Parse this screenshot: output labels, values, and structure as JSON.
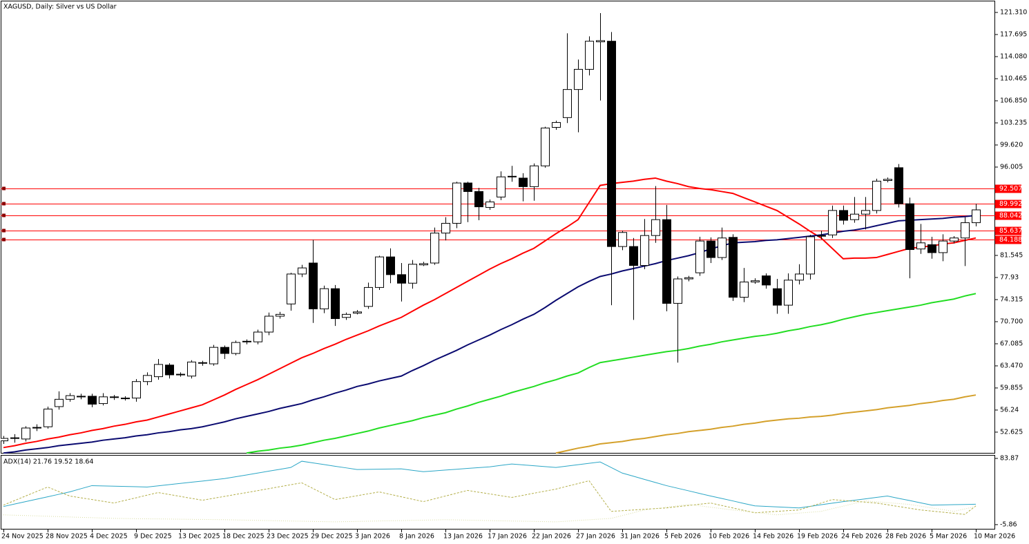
{
  "chart_data": [
    {
      "type": "candlestick",
      "title": "XAGUSD, Daily:  Silver vs US Dollar",
      "categories": [
        "24 Nov 2025",
        null,
        null,
        null,
        "28 Nov 2025",
        null,
        null,
        null,
        "4 Dec 2025",
        null,
        null,
        null,
        "9 Dec 2025",
        null,
        null,
        null,
        "13 Dec 2025",
        null,
        null,
        null,
        "18 Dec 2025",
        null,
        null,
        null,
        "23 Dec 2025",
        null,
        null,
        null,
        "29 Dec 2025",
        null,
        null,
        null,
        "3 Jan 2026",
        null,
        null,
        null,
        "8 Jan 2026",
        null,
        null,
        null,
        "13 Jan 2026",
        null,
        null,
        null,
        "17 Jan 2026",
        null,
        null,
        null,
        "22 Jan 2026",
        null,
        null,
        null,
        "27 Jan 2026",
        null,
        null,
        null,
        "31 Jan 2026",
        null,
        null,
        null,
        "5 Feb 2026",
        null,
        null,
        null,
        "10 Feb 2026",
        null,
        null,
        null,
        "14 Feb 2026",
        null,
        null,
        null,
        "19 Feb 2026",
        null,
        null,
        null,
        "24 Feb 2026",
        null,
        null,
        null,
        "28 Feb 2026",
        null,
        null,
        null,
        "5 Mar 2026",
        null,
        null,
        null,
        "10 Mar 2026"
      ],
      "open": [
        51.2,
        51.6,
        51.5,
        53.3,
        53.5,
        56.8,
        58.0,
        58.4,
        58.5,
        57.3,
        58.4,
        58.2,
        58.2,
        60.9,
        61.7,
        63.6,
        62.0,
        61.8,
        64.0,
        63.8,
        66.5,
        65.5,
        67.4,
        67.4,
        69.0,
        71.6,
        73.6,
        78.5,
        80.3,
        72.8,
        76.1,
        71.4,
        72.1,
        73.2,
        76.3,
        81.3,
        78.4,
        77.0,
        80.0,
        80.3,
        85.2,
        86.8,
        93.4,
        92.0,
        89.4,
        91.1,
        94.4,
        94.2,
        92.8,
        96.2,
        102.5,
        104.1,
        108.7,
        112.0,
        116.5,
        116.6,
        83.0,
        83.0,
        79.9,
        84.8,
        87.4,
        73.7,
        77.7,
        78.7,
        83.9,
        81.2,
        84.5,
        74.7,
        77.2,
        78.2,
        76.1,
        73.4,
        77.5,
        78.5,
        84.7,
        84.9,
        88.9,
        87.4,
        88.3,
        88.9,
        93.8,
        95.9,
        90.0,
        82.6,
        83.3,
        82.0,
        83.9,
        84.4,
        86.9
      ],
      "high": [
        52.0,
        52.3,
        53.6,
        53.9,
        56.8,
        59.3,
        59.0,
        58.9,
        58.9,
        59.0,
        58.7,
        58.5,
        61.3,
        62.4,
        64.6,
        63.9,
        62.4,
        64.4,
        64.3,
        66.9,
        66.8,
        67.6,
        67.8,
        69.4,
        72.2,
        72.3,
        78.7,
        80.0,
        84.1,
        76.6,
        76.7,
        72.2,
        72.6,
        77.1,
        81.5,
        82.7,
        80.3,
        80.8,
        80.5,
        86.1,
        87.8,
        93.6,
        93.6,
        92.6,
        90.7,
        95.3,
        96.2,
        95.0,
        96.6,
        102.6,
        103.6,
        117.9,
        113.6,
        117.4,
        121.2,
        118.1,
        85.6,
        84.4,
        87.5,
        92.9,
        89.8,
        78.1,
        78.2,
        84.6,
        84.5,
        86.1,
        85.0,
        79.5,
        77.8,
        78.6,
        77.7,
        78.6,
        80.1,
        84.9,
        85.6,
        89.7,
        89.7,
        91.1,
        91.1,
        94.1,
        94.3,
        96.5,
        91.0,
        86.7,
        84.6,
        85.0,
        84.7,
        87.8,
        90.0
      ],
      "low": [
        50.7,
        50.9,
        51.1,
        52.8,
        53.2,
        56.3,
        57.6,
        58.0,
        56.7,
        57.0,
        57.9,
        57.8,
        57.6,
        60.3,
        61.2,
        61.4,
        61.7,
        61.4,
        63.5,
        63.5,
        64.6,
        65.2,
        67.0,
        67.0,
        68.5,
        71.2,
        72.5,
        78.0,
        70.5,
        72.1,
        70.0,
        71.0,
        71.9,
        72.8,
        75.9,
        77.0,
        74.0,
        76.1,
        79.8,
        80.0,
        84.0,
        86.0,
        87.0,
        87.3,
        89.0,
        90.6,
        93.6,
        90.4,
        90.5,
        95.9,
        102.1,
        103.2,
        101.7,
        111.0,
        106.9,
        73.4,
        82.4,
        71.0,
        79.3,
        83.6,
        72.4,
        64.0,
        77.3,
        78.2,
        80.3,
        80.8,
        74.1,
        73.9,
        76.9,
        76.1,
        72.0,
        72.0,
        76.8,
        77.6,
        84.2,
        84.4,
        86.6,
        86.9,
        85.8,
        88.4,
        93.5,
        89.4,
        77.8,
        81.8,
        81.0,
        80.6,
        83.5,
        79.8,
        86.3
      ],
      "close": [
        51.6,
        51.7,
        53.3,
        53.4,
        56.4,
        58.0,
        58.6,
        58.5,
        57.2,
        58.4,
        58.3,
        58.2,
        60.9,
        61.9,
        63.7,
        62.0,
        62.1,
        64.1,
        63.9,
        66.5,
        65.5,
        67.3,
        67.5,
        69.0,
        71.6,
        71.9,
        78.5,
        79.5,
        72.8,
        76.1,
        71.2,
        71.9,
        72.3,
        76.3,
        81.3,
        78.4,
        77.0,
        80.1,
        80.2,
        85.2,
        86.8,
        93.4,
        92.0,
        89.5,
        90.3,
        94.4,
        94.5,
        92.8,
        96.2,
        102.4,
        103.3,
        108.7,
        112.0,
        116.6,
        116.7,
        83.0,
        85.3,
        79.9,
        84.8,
        87.4,
        73.7,
        77.7,
        77.9,
        83.9,
        81.2,
        84.4,
        74.7,
        77.2,
        77.4,
        76.7,
        73.4,
        77.5,
        78.5,
        84.6,
        84.8,
        88.9,
        87.3,
        88.3,
        88.9,
        93.7,
        94.0,
        90.0,
        82.5,
        83.6,
        82.0,
        83.9,
        84.4,
        86.9,
        89.0
      ],
      "up_color": "#ffffff",
      "down_color": "#000000",
      "series": [
        {
          "color": "#ff0000",
          "values": [
            50.1,
            50.4,
            50.8,
            51.1,
            51.5,
            51.8,
            52.2,
            52.5,
            52.9,
            53.2,
            53.6,
            53.9,
            54.3,
            54.6,
            55.1,
            55.6,
            56.1,
            56.6,
            57.1,
            57.9,
            58.7,
            59.6,
            60.4,
            61.2,
            62.1,
            63.0,
            63.9,
            64.8,
            65.5,
            66.3,
            67.0,
            67.8,
            68.5,
            69.2,
            70.0,
            70.7,
            71.4,
            72.4,
            73.4,
            74.3,
            75.3,
            76.3,
            77.3,
            78.3,
            79.3,
            80.2,
            81.0,
            81.9,
            82.7,
            83.9,
            85.1,
            86.2,
            87.4,
            90.2,
            93.0,
            93.3,
            93.5,
            93.7,
            94.0,
            94.2,
            93.7,
            93.3,
            92.8,
            92.5,
            92.3,
            92.0,
            91.7,
            91.0,
            90.3,
            89.6,
            88.9,
            87.8,
            86.7,
            85.5,
            84.4,
            82.7,
            81.0,
            81.1,
            81.1,
            81.2,
            81.7,
            82.2,
            82.7,
            82.9,
            83.1,
            83.4,
            83.6,
            84.0,
            84.4
          ]
        },
        {
          "color": "#0a0a70",
          "values": [
            49.2,
            49.4,
            49.7,
            49.9,
            50.1,
            50.4,
            50.6,
            50.8,
            51.0,
            51.3,
            51.5,
            51.7,
            52.0,
            52.2,
            52.5,
            52.7,
            53.0,
            53.2,
            53.5,
            53.9,
            54.3,
            54.8,
            55.2,
            55.6,
            56.0,
            56.5,
            56.9,
            57.3,
            57.9,
            58.4,
            59.0,
            59.5,
            60.1,
            60.5,
            61.0,
            61.4,
            61.8,
            62.7,
            63.5,
            64.4,
            65.2,
            66.0,
            66.9,
            67.7,
            68.5,
            69.4,
            70.2,
            71.1,
            71.9,
            73.0,
            74.2,
            75.3,
            76.4,
            77.3,
            78.1,
            78.5,
            79.0,
            79.4,
            79.8,
            80.2,
            80.7,
            81.1,
            81.5,
            82.0,
            82.6,
            83.1,
            83.6,
            83.7,
            83.8,
            84.0,
            84.1,
            84.3,
            84.5,
            84.7,
            84.9,
            85.2,
            85.5,
            85.7,
            86.0,
            86.4,
            86.8,
            87.2,
            87.3,
            87.4,
            87.5,
            87.6,
            87.8,
            87.9,
            88.1
          ]
        },
        {
          "color": "#22dd22",
          "values": [
            null,
            null,
            null,
            null,
            null,
            null,
            null,
            null,
            null,
            null,
            null,
            null,
            null,
            null,
            null,
            null,
            null,
            null,
            null,
            null,
            null,
            null,
            49.2,
            49.5,
            49.7,
            50.0,
            50.2,
            50.5,
            50.9,
            51.3,
            51.6,
            52.0,
            52.4,
            52.8,
            53.3,
            53.7,
            54.1,
            54.5,
            55.0,
            55.4,
            55.8,
            56.4,
            56.9,
            57.5,
            58.0,
            58.5,
            59.1,
            59.6,
            60.1,
            60.7,
            61.2,
            61.8,
            62.3,
            63.2,
            64.0,
            64.3,
            64.6,
            64.9,
            65.2,
            65.5,
            65.8,
            66.0,
            66.3,
            66.7,
            67.0,
            67.4,
            67.7,
            68.0,
            68.3,
            68.5,
            68.8,
            69.2,
            69.5,
            69.9,
            70.2,
            70.6,
            71.1,
            71.5,
            71.9,
            72.2,
            72.5,
            72.8,
            73.1,
            73.4,
            73.8,
            74.1,
            74.4,
            74.9,
            75.3
          ]
        },
        {
          "color": "#d4a02a",
          "values": [
            null,
            null,
            null,
            null,
            null,
            null,
            null,
            null,
            null,
            null,
            null,
            null,
            null,
            null,
            null,
            null,
            null,
            null,
            null,
            null,
            null,
            null,
            null,
            null,
            null,
            null,
            null,
            null,
            null,
            null,
            null,
            null,
            null,
            null,
            null,
            null,
            null,
            null,
            null,
            null,
            null,
            null,
            null,
            null,
            null,
            null,
            null,
            null,
            null,
            null,
            49.2,
            49.6,
            50.0,
            50.3,
            50.7,
            50.9,
            51.1,
            51.4,
            51.6,
            51.9,
            52.2,
            52.4,
            52.7,
            52.9,
            53.1,
            53.4,
            53.6,
            53.9,
            54.1,
            54.4,
            54.6,
            54.8,
            54.9,
            55.1,
            55.2,
            55.4,
            55.7,
            55.9,
            56.1,
            56.3,
            56.6,
            56.8,
            57.0,
            57.3,
            57.5,
            57.8,
            58.0,
            58.4,
            58.7
          ]
        }
      ],
      "levels": {
        "color": "#ff0000",
        "values": [
          92.507,
          89.992,
          88.042,
          85.637,
          84.188
        ]
      },
      "ylim": [
        49.23,
        123.12
      ],
      "yticks": [
        {
          "value": 121.31,
          "label": "121.310"
        },
        117.695,
        {
          "value": 114.08,
          "label": "114.080"
        },
        110.465,
        {
          "value": 106.85,
          "label": "106.850"
        },
        103.235,
        {
          "value": 99.62,
          "label": "99.620"
        },
        96.005,
        81.545,
        77.93,
        74.315,
        {
          "value": 70.7,
          "label": "70.700"
        },
        67.085,
        {
          "value": 63.47,
          "label": "63.470"
        },
        59.855,
        56.24,
        52.625
      ],
      "grid": false
    },
    {
      "type": "line",
      "title": "ADX(14) 21.76 19.52 18.64",
      "series": [
        {
          "color": "#2aa6c6",
          "style": "solid",
          "values": [
            18.7,
            22.0,
            25.3,
            28.6,
            31.9,
            35.2,
            38.5,
            42.8,
            47.0,
            46.6,
            46.2,
            45.9,
            45.5,
            45.1,
            46.7,
            48.4,
            50.0,
            51.6,
            53.2,
            54.9,
            56.5,
            59.0,
            61.5,
            64.0,
            66.6,
            69.1,
            71.6,
            80.1,
            77.8,
            75.6,
            73.3,
            71.1,
            68.8,
            69.0,
            69.3,
            69.5,
            69.7,
            67.8,
            65.9,
            67.0,
            68.1,
            69.2,
            70.3,
            71.4,
            72.5,
            74.4,
            76.3,
            75.1,
            74.0,
            72.8,
            71.6,
            73.5,
            75.4,
            77.2,
            79.1,
            71.6,
            64.0,
            59.8,
            55.5,
            51.3,
            47.0,
            43.5,
            40.0,
            36.4,
            32.9,
            29.6,
            26.3,
            22.9,
            19.6,
            18.9,
            18.2,
            17.5,
            16.8,
            18.9,
            21.1,
            23.2,
            25.3,
            27.2,
            29.1,
            31.0,
            32.9,
            29.8,
            26.8,
            23.7,
            20.6,
            20.9,
            21.2,
            21.5,
            21.76
          ]
        },
        {
          "color": "#b3ae48",
          "style": "dashed",
          "values": [
            20.6,
            26.7,
            32.9,
            39.0,
            45.1,
            39.0,
            32.9,
            30.5,
            28.2,
            25.8,
            23.4,
            27.0,
            30.5,
            34.1,
            37.6,
            35.0,
            32.4,
            29.8,
            27.2,
            29.8,
            32.4,
            35.0,
            37.6,
            40.2,
            42.9,
            45.5,
            48.2,
            50.8,
            43.2,
            35.7,
            28.1,
            30.7,
            33.3,
            35.9,
            38.5,
            35.2,
            31.9,
            28.6,
            25.3,
            29.1,
            32.9,
            36.7,
            40.5,
            38.1,
            35.8,
            33.4,
            31.0,
            33.8,
            36.7,
            39.5,
            42.3,
            46.1,
            49.8,
            53.6,
            32.9,
            12.1,
            13.0,
            14.0,
            14.9,
            15.9,
            16.8,
            18.5,
            20.1,
            21.8,
            23.4,
            20.1,
            16.8,
            13.5,
            10.2,
            11.2,
            12.1,
            13.1,
            14.0,
            18.7,
            23.4,
            28.1,
            26.9,
            25.8,
            24.6,
            23.4,
            21.1,
            18.7,
            16.4,
            14.0,
            12.5,
            11.0,
            9.5,
            8.0,
            19.52
          ]
        },
        {
          "color": "#d8dca0",
          "style": "dotted",
          "values": [
            7.4,
            6.9,
            6.5,
            6.0,
            5.5,
            5.0,
            4.5,
            4.0,
            3.6,
            3.1,
            2.6,
            2.4,
            2.2,
            2.0,
            1.9,
            1.7,
            1.5,
            1.3,
            1.2,
            1.0,
            0.8,
            0.5,
            0.2,
            -0.1,
            -0.4,
            -0.7,
            -1.0,
            -1.2,
            -1.5,
            -1.8,
            -2.1,
            -1.8,
            -1.5,
            -1.2,
            -0.9,
            -0.6,
            -0.4,
            -0.1,
            0.2,
            0.5,
            0.8,
            0.5,
            0.2,
            -0.1,
            -0.4,
            -0.7,
            -1.0,
            -1.2,
            -1.5,
            -1.8,
            -2.1,
            -1.2,
            -0.2,
            0.7,
            1.7,
            2.6,
            6.4,
            10.2,
            14.0,
            15.9,
            17.7,
            19.6,
            21.5,
            19.6,
            17.7,
            15.9,
            14.0,
            12.4,
            10.7,
            9.1,
            7.4,
            8.6,
            9.8,
            10.9,
            12.1,
            15.7,
            19.2,
            22.8,
            26.3,
            25.1,
            23.9,
            22.7,
            21.5,
            19.2,
            16.8,
            14.5,
            12.1,
            15.4,
            18.64
          ]
        }
      ],
      "ylim": [
        -11.53,
        87.65
      ],
      "yticks": [
        83.87,
        -5.86
      ]
    }
  ]
}
